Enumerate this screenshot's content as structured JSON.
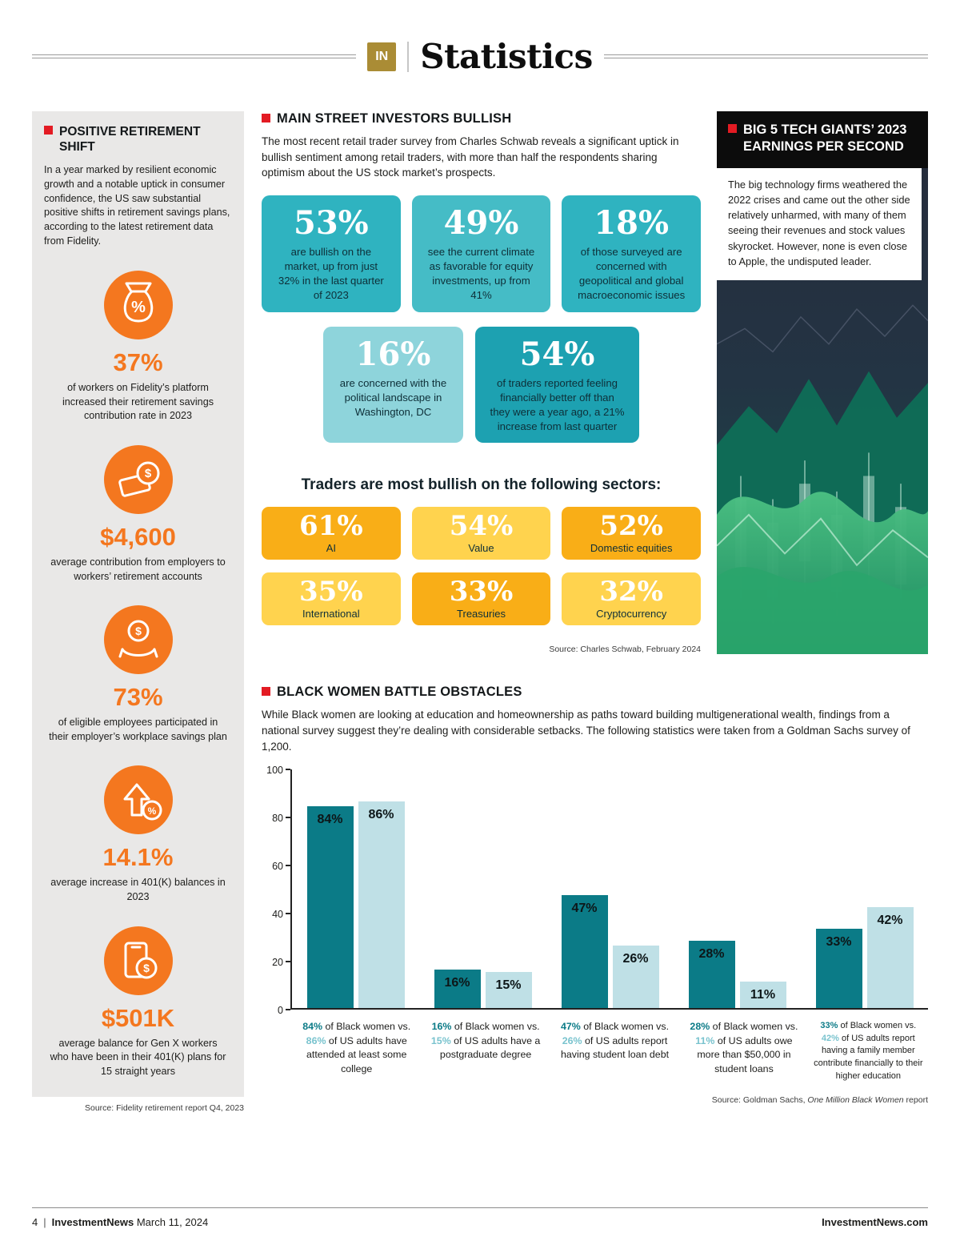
{
  "page": {
    "logo": "IN",
    "title": "Statistics",
    "footer": {
      "page_number": "4",
      "brand": "InvestmentNews",
      "date": "March 11, 2024",
      "site": "InvestmentNews.com"
    }
  },
  "colors": {
    "accent_orange": "#f4771f",
    "red_bullet": "#e31b23",
    "gold_badge": "#aa8c35",
    "teal_mid": "#2fb3c0",
    "teal_mid2": "#45bcc6",
    "teal_light": "#8ed4db",
    "teal_deep": "#1da1b1",
    "gold": "#f9ae17",
    "yellow": "#ffd34e",
    "bar_dark": "#0b7b87",
    "bar_light": "#bfe0e6"
  },
  "sidebar": {
    "title": "POSITIVE RETIREMENT SHIFT",
    "intro": "In a year marked by resilient economic growth and a notable uptick in consumer confidence, the US saw substantial positive shifts in retirement savings plans, according to the latest retirement data from Fidelity.",
    "stats": [
      {
        "icon": "money-bag-percent-icon",
        "value": "37%",
        "label": "of workers on Fidelity’s platform increased their retirement savings contribution rate in 2023"
      },
      {
        "icon": "hand-dollar-icon",
        "value": "$4,600",
        "label": "average contribution from employers to workers’ retirement accounts"
      },
      {
        "icon": "hand-coin-icon",
        "value": "73%",
        "label": "of eligible employees participated in their employer’s workplace savings plan"
      },
      {
        "icon": "growth-arrow-percent-icon",
        "value": "14.1%",
        "label": "average increase in 401(K) balances in 2023"
      },
      {
        "icon": "phone-money-icon",
        "value": "$501K",
        "label": "average balance for Gen X workers who have been in their 401(K) plans for 15 straight years"
      }
    ],
    "source": "Source: Fidelity retirement report Q4, 2023"
  },
  "main": {
    "title": "MAIN STREET INVESTORS BULLISH",
    "intro": "The most recent retail trader survey from Charles Schwab reveals a significant uptick in bullish sentiment among retail traders, with more than half the respondents sharing optimism about the US stock market’s prospects.",
    "stats_row1": [
      {
        "value": "53%",
        "label": "are bullish on the market, up from just 32% in the last quarter of 2023",
        "tone": "teal_mid"
      },
      {
        "value": "49%",
        "label": "see the current climate as favorable for equity investments, up from 41%",
        "tone": "teal_mid2"
      },
      {
        "value": "18%",
        "label": "of those surveyed are concerned with geopolitical and global macroeconomic issues",
        "tone": "teal_mid"
      }
    ],
    "stats_row2": [
      {
        "value": "16%",
        "label": "are concerned with the political landscape in Washington, DC",
        "tone": "teal_light"
      },
      {
        "value": "54%",
        "label": "of traders reported feeling financially better off than they were a year ago, a 21% increase from last quarter",
        "tone": "teal_deep"
      }
    ],
    "sectors_title": "Traders are most bullish on the following sectors:",
    "sectors": [
      {
        "value": "61%",
        "label": "AI",
        "tone": "gold"
      },
      {
        "value": "54%",
        "label": "Value",
        "tone": "yellow"
      },
      {
        "value": "52%",
        "label": "Domestic equities",
        "tone": "gold"
      },
      {
        "value": "35%",
        "label": "International",
        "tone": "yellow"
      },
      {
        "value": "33%",
        "label": "Treasuries",
        "tone": "gold"
      },
      {
        "value": "32%",
        "label": "Cryptocurrency",
        "tone": "yellow"
      }
    ],
    "source": "Source: Charles Schwab, February 2024"
  },
  "tech": {
    "title": "BIG 5 TECH GIANTS’ 2023 EARNINGS PER SECOND",
    "body": "The big technology firms weathered the 2022 crises and came out the other side relatively unharmed, with many of them seeing their revenues and stock values skyrocket. However, none is even close to Apple, the undisputed leader."
  },
  "black_women": {
    "title": "BLACK WOMEN BATTLE OBSTACLES",
    "intro": "While Black women are looking at education and homeownership as paths toward building multigenerational wealth, findings from a national survey suggest they’re dealing with considerable setbacks. The following statistics were taken from a Goldman Sachs survey of 1,200.",
    "source_prefix": "Source: Goldman Sachs, ",
    "source_italic": "One Million Black Women",
    "source_suffix": " report"
  },
  "chart_data": {
    "type": "bar",
    "title": "",
    "xlabel": "",
    "ylabel": "",
    "ylim": [
      0,
      100
    ],
    "yticks": [
      0,
      20,
      40,
      60,
      80,
      100
    ],
    "grid": false,
    "legend": "none",
    "series": [
      {
        "name": "Black women",
        "color": "#0b7b87",
        "label_color": "#0b7b87"
      },
      {
        "name": "US adults",
        "color": "#bfe0e6",
        "label_color": "#79c3ce"
      }
    ],
    "groups": [
      {
        "values": [
          84,
          86
        ],
        "caption": [
          "84%",
          " of Black women vs. ",
          "86%",
          " of US adults have attended at least some college"
        ]
      },
      {
        "values": [
          16,
          15
        ],
        "caption": [
          "16%",
          " of Black women vs. ",
          "15%",
          " of US adults have a postgraduate degree"
        ]
      },
      {
        "values": [
          47,
          26
        ],
        "caption": [
          "47%",
          " of Black women vs. ",
          "26%",
          " of US adults report having student loan debt"
        ]
      },
      {
        "values": [
          28,
          11
        ],
        "caption": [
          "28%",
          " of Black women vs. ",
          "11%",
          " of US adults owe more than $50,000 in student loans"
        ]
      },
      {
        "values": [
          33,
          42
        ],
        "caption": [
          "33%",
          " of Black women vs. ",
          "42%",
          " of US adults report having a family member contribute financially to their higher education"
        ]
      }
    ]
  }
}
